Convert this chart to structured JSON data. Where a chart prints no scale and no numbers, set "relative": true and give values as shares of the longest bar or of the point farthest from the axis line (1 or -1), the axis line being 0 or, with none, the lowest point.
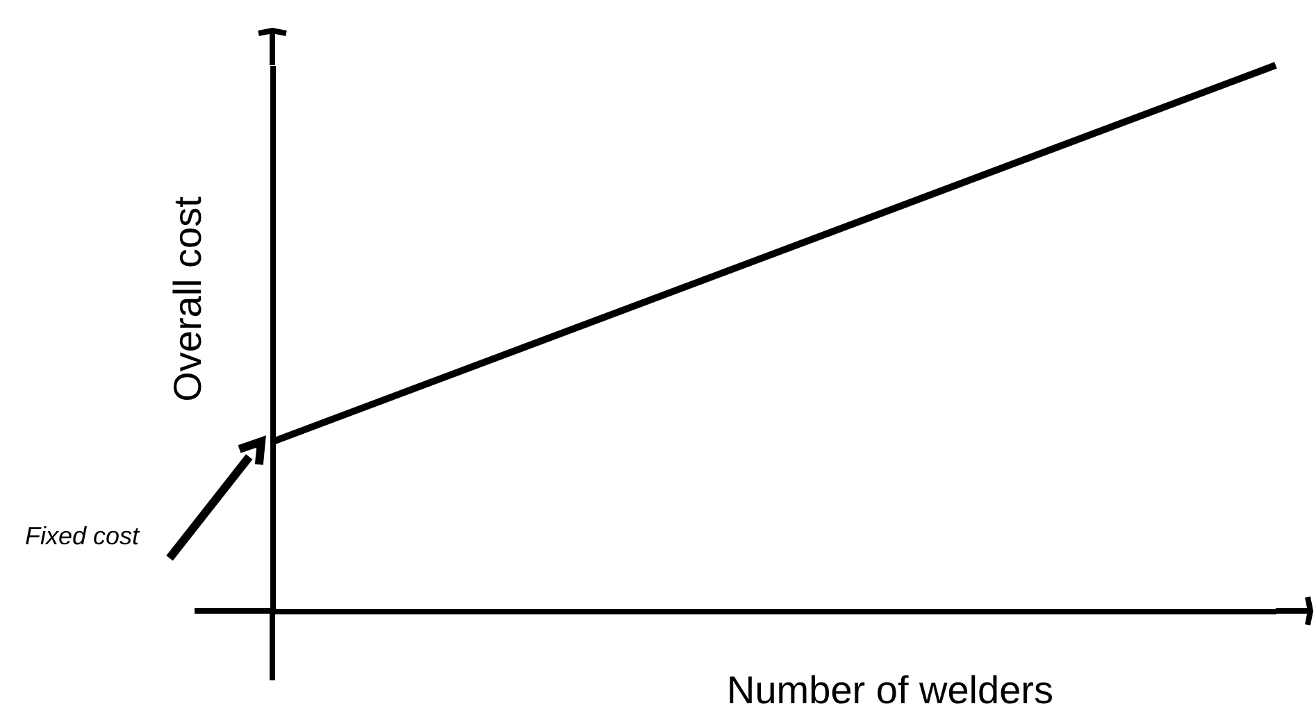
{
  "chart_data": {
    "type": "line",
    "xlabel": "Number of welders",
    "ylabel": "Overall cost",
    "categories": [
      null,
      null
    ],
    "relative": true,
    "series": [
      {
        "color": "#000000",
        "values": [
          0.31,
          1
        ]
      }
    ],
    "annotations": [
      "Fixed cost"
    ]
  }
}
